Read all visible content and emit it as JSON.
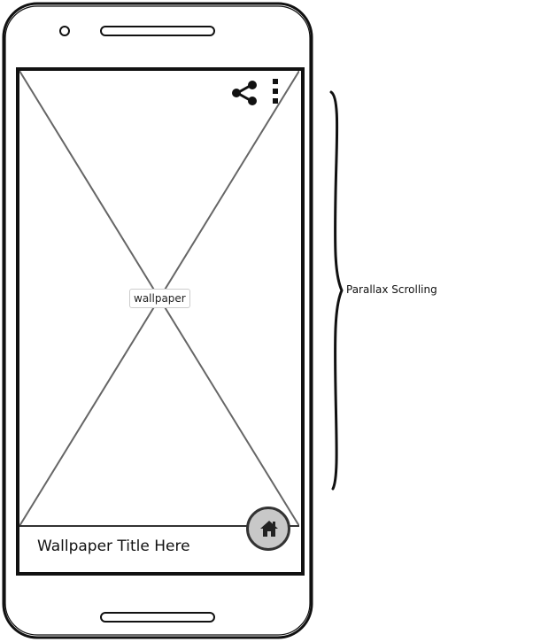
{
  "wallpaper": {
    "placeholder_label": "wallpaper",
    "title": "Wallpaper Title Here"
  },
  "toolbar": {
    "share_icon": "share-icon",
    "more_icon": "more-vertical-icon"
  },
  "fab": {
    "icon": "home-icon"
  },
  "annotation": {
    "label": "Parallax Scrolling"
  },
  "colors": {
    "outline": "#111111",
    "fab_fill": "#c8c8c8",
    "placeholder_lines": "#666666"
  }
}
